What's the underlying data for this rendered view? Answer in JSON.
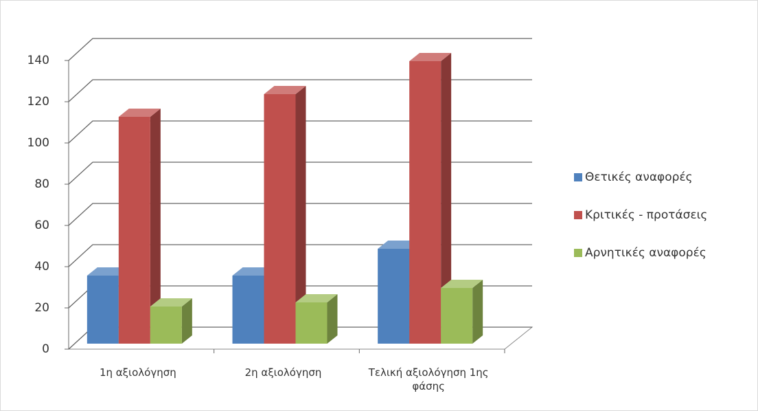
{
  "chart_data": {
    "type": "bar3d",
    "categories": [
      "1η αξιολόγηση",
      "2η αξιολόγηση",
      "Τελική αξιολόγηση 1ης φάσης"
    ],
    "series": [
      {
        "name": "Θετικές αναφορές",
        "color": "#4f81bd",
        "values": [
          33,
          33,
          46
        ]
      },
      {
        "name": "Κριτικές - προτάσεις",
        "color": "#c0504d",
        "values": [
          110,
          121,
          137
        ]
      },
      {
        "name": "Αρνητικές αναφορές",
        "color": "#9bbb59",
        "values": [
          18,
          20,
          27
        ]
      }
    ],
    "ylim": [
      0,
      140
    ],
    "yticks": [
      0,
      20,
      40,
      60,
      80,
      100,
      120,
      140
    ],
    "grid": true,
    "legend": "right"
  }
}
